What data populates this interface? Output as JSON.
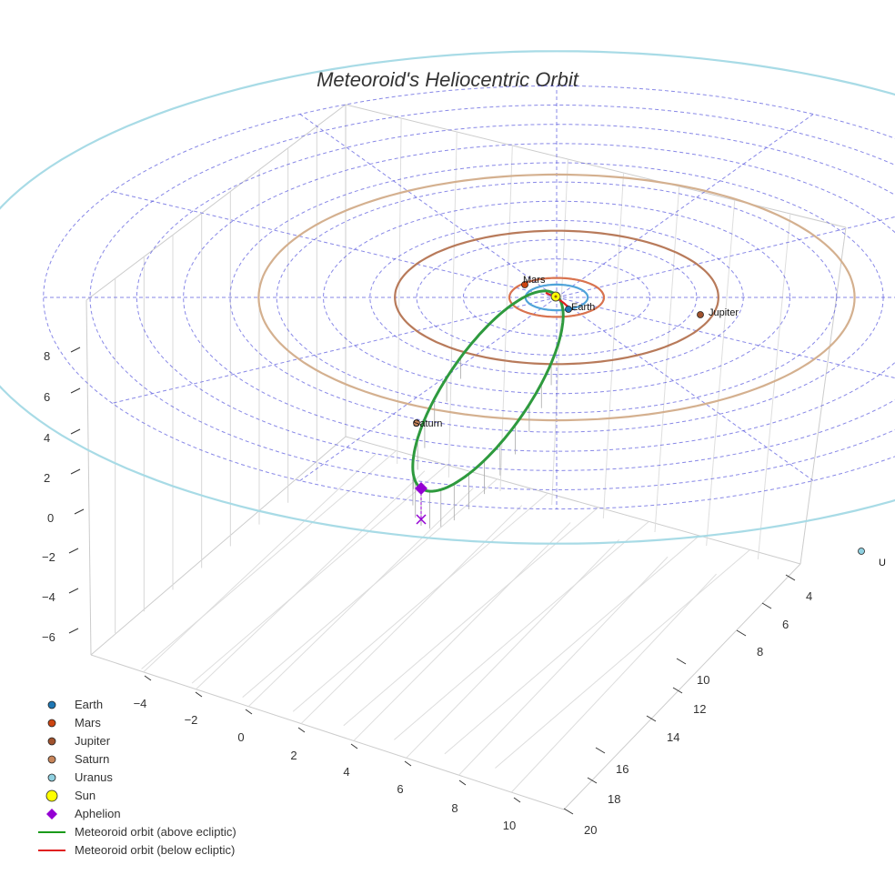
{
  "chart_data": {
    "type": "scatter",
    "title": "Meteoroid's Heliocentric Orbit",
    "axes": {
      "x_ticks": [
        "−4",
        "−2",
        "0",
        "2",
        "4",
        "6",
        "8",
        "10"
      ],
      "y_ticks": [
        "4",
        "6",
        "8",
        "10",
        "12",
        "14",
        "16",
        "18",
        "20"
      ],
      "z_ticks": [
        "8",
        "6",
        "4",
        "2",
        "0",
        "−2",
        "−4",
        "−6"
      ]
    },
    "planets": [
      {
        "name": "Earth",
        "label": "Earth",
        "orbit_radius_au": 1.0,
        "color": "#1f77b4",
        "orbit_color": "#4fa3d9"
      },
      {
        "name": "Mars",
        "label": "Mars",
        "orbit_radius_au": 1.52,
        "color": "#cc4411",
        "orbit_color": "#d9734f"
      },
      {
        "name": "Jupiter",
        "label": "Jupiter",
        "orbit_radius_au": 5.2,
        "color": "#a0522d",
        "orbit_color": "#b87a5a"
      },
      {
        "name": "Saturn",
        "label": "Saturn",
        "orbit_radius_au": 9.58,
        "color": "#c8855a",
        "orbit_color": "#d4b08f"
      },
      {
        "name": "Uranus",
        "label": "U",
        "orbit_radius_au": 19.2,
        "color": "#8fd0e0",
        "orbit_color": "#a8dbe6"
      }
    ],
    "sun": {
      "name": "Sun",
      "color": "#ffff00"
    },
    "aphelion": {
      "name": "Aphelion",
      "color": "#9400d3"
    },
    "meteoroid_orbit": {
      "above_color": "#2e9a3e",
      "below_color": "#e02020"
    },
    "legend": {
      "position": "bottom-left",
      "items": [
        {
          "label": "Earth",
          "kind": "dot",
          "color": "#1f77b4"
        },
        {
          "label": "Mars",
          "kind": "dot",
          "color": "#cc4411"
        },
        {
          "label": "Jupiter",
          "kind": "dot",
          "color": "#a0522d"
        },
        {
          "label": "Saturn",
          "kind": "dot",
          "color": "#c8855a"
        },
        {
          "label": "Uranus",
          "kind": "dot",
          "color": "#8fd0e0"
        },
        {
          "label": "Sun",
          "kind": "bigdot",
          "color": "#ffff00"
        },
        {
          "label": "Aphelion",
          "kind": "diamond",
          "color": "#9400d3"
        },
        {
          "label": "Meteoroid orbit (above ecliptic)",
          "kind": "line",
          "color": "#1a9a1a"
        },
        {
          "label": "Meteoroid orbit (below ecliptic)",
          "kind": "line",
          "color": "#e02020"
        }
      ]
    },
    "grid": true,
    "polar_grid_color": "#5555dd"
  }
}
